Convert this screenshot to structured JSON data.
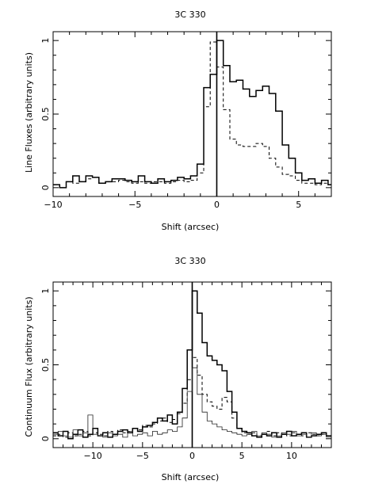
{
  "chart_data": [
    {
      "type": "line",
      "title": "3C 330",
      "xlabel": "Shift (arcsec)",
      "ylabel": "Line Fluxes (arbitrary units)",
      "xlim": [
        -10,
        7
      ],
      "ylim": [
        -0.06,
        1.06
      ],
      "xticks": [
        -10,
        -5,
        0,
        5
      ],
      "yticks": [
        0,
        0.5,
        1
      ],
      "xtick_labels": [
        "−10",
        "−5",
        "0",
        "5"
      ],
      "ytick_labels": [
        "0",
        "0.5",
        "1"
      ],
      "vline": 0,
      "step": true,
      "series": [
        {
          "style": "solid",
          "x": [
            -10.0,
            -9.6,
            -9.2,
            -8.8,
            -8.4,
            -8.0,
            -7.6,
            -7.2,
            -6.8,
            -6.4,
            -6.0,
            -5.6,
            -5.2,
            -4.8,
            -4.4,
            -4.0,
            -3.6,
            -3.2,
            -2.8,
            -2.4,
            -2.0,
            -1.6,
            -1.2,
            -0.8,
            -0.4,
            0.0,
            0.4,
            0.8,
            1.2,
            1.6,
            2.0,
            2.4,
            2.8,
            3.2,
            3.6,
            4.0,
            4.4,
            4.8,
            5.2,
            5.6,
            6.0,
            6.4,
            6.8
          ],
          "values": [
            0.02,
            0.0,
            0.04,
            0.08,
            0.04,
            0.08,
            0.07,
            0.03,
            0.04,
            0.06,
            0.06,
            0.05,
            0.04,
            0.08,
            0.04,
            0.03,
            0.06,
            0.04,
            0.05,
            0.07,
            0.06,
            0.08,
            0.16,
            0.68,
            0.77,
            1.0,
            0.83,
            0.72,
            0.73,
            0.67,
            0.62,
            0.66,
            0.69,
            0.64,
            0.52,
            0.29,
            0.2,
            0.1,
            0.05,
            0.06,
            0.03,
            0.05,
            0.02
          ]
        },
        {
          "style": "dashed",
          "x": [
            -10.0,
            -9.6,
            -9.2,
            -8.8,
            -8.4,
            -8.0,
            -7.6,
            -7.2,
            -6.8,
            -6.4,
            -6.0,
            -5.6,
            -5.2,
            -4.8,
            -4.4,
            -4.0,
            -3.6,
            -3.2,
            -2.8,
            -2.4,
            -2.0,
            -1.6,
            -1.2,
            -0.8,
            -0.4,
            0.0,
            0.4,
            0.8,
            1.2,
            1.6,
            2.0,
            2.4,
            2.8,
            3.2,
            3.6,
            4.0,
            4.4,
            4.8,
            5.2,
            5.6,
            6.0,
            6.4,
            6.8
          ],
          "values": [
            0.02,
            0.0,
            0.04,
            0.03,
            0.04,
            0.06,
            0.07,
            0.03,
            0.04,
            0.04,
            0.05,
            0.04,
            0.03,
            0.04,
            0.03,
            0.04,
            0.04,
            0.03,
            0.04,
            0.05,
            0.04,
            0.05,
            0.1,
            0.55,
            0.99,
            0.82,
            0.53,
            0.33,
            0.29,
            0.28,
            0.28,
            0.3,
            0.28,
            0.2,
            0.14,
            0.09,
            0.08,
            0.05,
            0.03,
            0.03,
            0.02,
            0.03,
            0.02
          ]
        }
      ]
    },
    {
      "type": "line",
      "title": "3C 330",
      "xlabel": "Shift (arcsec)",
      "ylabel": "Continuum Flux (arbitrary units)",
      "xlim": [
        -14,
        14
      ],
      "ylim": [
        -0.06,
        1.06
      ],
      "xticks": [
        -10,
        -5,
        0,
        5,
        10
      ],
      "yticks": [
        0,
        0.5,
        1
      ],
      "xtick_labels": [
        "−10",
        "−5",
        "0",
        "5",
        "10"
      ],
      "ytick_labels": [
        "0",
        "0.5",
        "1"
      ],
      "vline": 0,
      "step": true,
      "series": [
        {
          "style": "solid",
          "x": [
            -14.0,
            -13.5,
            -13.0,
            -12.5,
            -12.0,
            -11.5,
            -11.0,
            -10.5,
            -10.0,
            -9.5,
            -9.0,
            -8.5,
            -8.0,
            -7.5,
            -7.0,
            -6.5,
            -6.0,
            -5.5,
            -5.0,
            -4.5,
            -4.0,
            -3.5,
            -3.0,
            -2.5,
            -2.0,
            -1.5,
            -1.0,
            -0.5,
            0.0,
            0.5,
            1.0,
            1.5,
            2.0,
            2.5,
            3.0,
            3.5,
            4.0,
            4.5,
            5.0,
            5.5,
            6.0,
            6.5,
            7.0,
            7.5,
            8.0,
            8.5,
            9.0,
            9.5,
            10.0,
            10.5,
            11.0,
            11.5,
            12.0,
            12.5,
            13.0,
            13.5
          ],
          "values": [
            0.04,
            0.02,
            0.05,
            0.0,
            0.03,
            0.06,
            0.01,
            0.03,
            0.07,
            0.02,
            0.04,
            0.01,
            0.03,
            0.05,
            0.06,
            0.04,
            0.07,
            0.05,
            0.08,
            0.09,
            0.11,
            0.14,
            0.12,
            0.16,
            0.1,
            0.18,
            0.34,
            0.6,
            1.0,
            0.85,
            0.65,
            0.56,
            0.53,
            0.5,
            0.46,
            0.32,
            0.18,
            0.07,
            0.05,
            0.04,
            0.02,
            0.01,
            0.03,
            0.02,
            0.04,
            0.01,
            0.03,
            0.05,
            0.02,
            0.03,
            0.04,
            0.01,
            0.02,
            0.03,
            0.04,
            0.02
          ]
        },
        {
          "style": "dashed",
          "x": [
            -14.0,
            -13.5,
            -13.0,
            -12.5,
            -12.0,
            -11.5,
            -11.0,
            -10.5,
            -10.0,
            -9.5,
            -9.0,
            -8.5,
            -8.0,
            -7.5,
            -7.0,
            -6.5,
            -6.0,
            -5.5,
            -5.0,
            -4.5,
            -4.0,
            -3.5,
            -3.0,
            -2.5,
            -2.0,
            -1.5,
            -1.0,
            -0.5,
            0.0,
            0.5,
            1.0,
            1.5,
            2.0,
            2.5,
            3.0,
            3.5,
            4.0,
            4.5,
            5.0,
            5.5,
            6.0,
            6.5,
            7.0,
            7.5,
            8.0,
            8.5,
            9.0,
            9.5,
            10.0,
            10.5,
            11.0,
            11.5,
            12.0,
            12.5,
            13.0,
            13.5
          ],
          "values": [
            0.02,
            0.03,
            0.01,
            0.04,
            0.02,
            0.03,
            0.05,
            0.02,
            0.04,
            0.03,
            0.02,
            0.05,
            0.03,
            0.06,
            0.04,
            0.05,
            0.07,
            0.06,
            0.09,
            0.08,
            0.1,
            0.12,
            0.14,
            0.11,
            0.13,
            0.17,
            0.24,
            0.4,
            0.55,
            0.43,
            0.3,
            0.25,
            0.22,
            0.2,
            0.28,
            0.25,
            0.14,
            0.07,
            0.04,
            0.03,
            0.04,
            0.02,
            0.03,
            0.05,
            0.02,
            0.04,
            0.03,
            0.02,
            0.04,
            0.03,
            0.02,
            0.04,
            0.03,
            0.02,
            0.03,
            0.02
          ]
        },
        {
          "style": "solid-thin",
          "x": [
            -14.0,
            -13.5,
            -13.0,
            -12.5,
            -12.0,
            -11.5,
            -11.0,
            -10.5,
            -10.0,
            -9.5,
            -9.0,
            -8.5,
            -8.0,
            -7.5,
            -7.0,
            -6.5,
            -6.0,
            -5.5,
            -5.0,
            -4.5,
            -4.0,
            -3.5,
            -3.0,
            -2.5,
            -2.0,
            -1.5,
            -1.0,
            -0.5,
            0.0,
            0.5,
            1.0,
            1.5,
            2.0,
            2.5,
            3.0,
            3.5,
            4.0,
            4.5,
            5.0,
            5.5,
            6.0,
            6.5,
            7.0,
            7.5,
            8.0,
            8.5,
            9.0,
            9.5,
            10.0,
            10.5,
            11.0,
            11.5,
            12.0,
            12.5,
            13.0,
            13.5
          ],
          "values": [
            0.03,
            0.05,
            0.02,
            0.01,
            0.06,
            0.02,
            0.04,
            0.16,
            0.03,
            0.02,
            0.01,
            0.04,
            0.02,
            0.03,
            0.01,
            0.05,
            0.02,
            0.03,
            0.04,
            0.02,
            0.05,
            0.03,
            0.04,
            0.06,
            0.05,
            0.08,
            0.14,
            0.32,
            0.48,
            0.3,
            0.18,
            0.12,
            0.1,
            0.08,
            0.06,
            0.05,
            0.04,
            0.03,
            0.02,
            0.03,
            0.05,
            0.02,
            0.04,
            0.03,
            0.01,
            0.02,
            0.04,
            0.03,
            0.05,
            0.02,
            0.03,
            0.01,
            0.04,
            0.02,
            0.03,
            0.01
          ]
        }
      ]
    }
  ]
}
